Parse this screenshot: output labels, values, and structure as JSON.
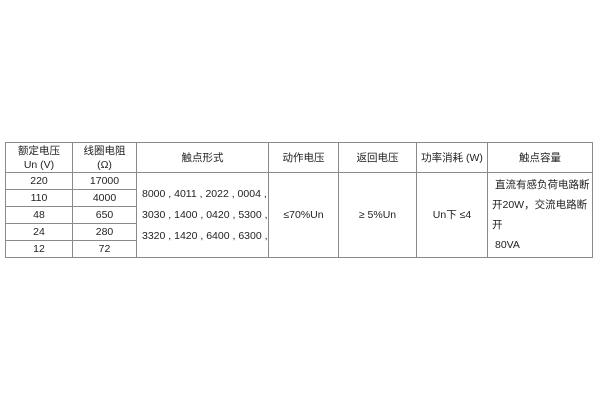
{
  "headers": {
    "voltage": [
      "额定电压",
      "Un (V)"
    ],
    "resistance": [
      "线圈电阻",
      "(Ω)"
    ],
    "contact_form": "触点形式",
    "operate_voltage": "动作电压",
    "return_voltage": "返回电压",
    "power": "功率消耗 (W)",
    "contact_capacity": "触点容量"
  },
  "rows": [
    {
      "voltage": "220",
      "resistance": "17000"
    },
    {
      "voltage": "110",
      "resistance": "4000"
    },
    {
      "voltage": "48",
      "resistance": "650"
    },
    {
      "voltage": "24",
      "resistance": "280"
    },
    {
      "voltage": "12",
      "resistance": "72"
    }
  ],
  "contact_form_lines": [
    "8000 , 4011 , 2022 , 0004 ,",
    "3030 , 1400 , 0420 , 5300 ,",
    "3320 , 1420 , 6400 , 6300 ,"
  ],
  "operate_voltage": "≤70%Un",
  "return_voltage": "≥  5%Un",
  "power": "Un下  ≤4",
  "contact_capacity_lines": [
    "直流有感负荷电路断",
    "开20W，交流电路断开",
    "80VA"
  ]
}
